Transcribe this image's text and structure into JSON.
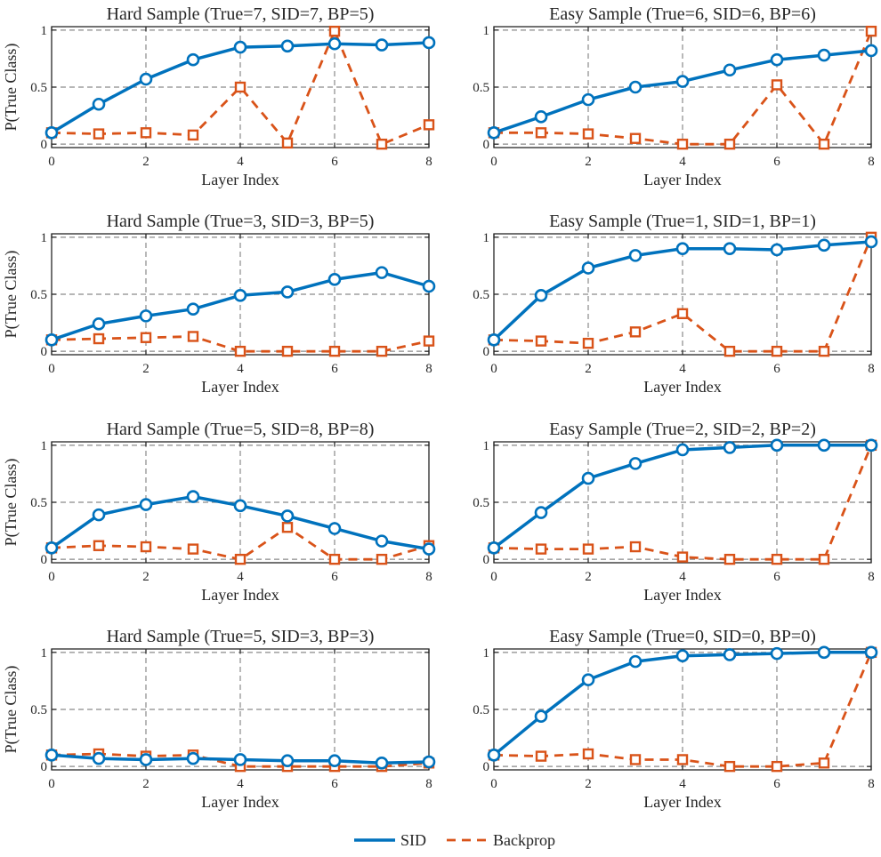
{
  "figure": {
    "sid_color": "#0072BD",
    "bp_color": "#D95319",
    "legend": [
      {
        "name": "SID",
        "style": "solid",
        "marker": "circle"
      },
      {
        "name": "Backprop",
        "style": "dashed",
        "marker": "square"
      }
    ]
  },
  "chart_data": [
    {
      "type": "line",
      "title": "Hard Sample (True=7, SID=7, BP=5)",
      "xlabel": "Layer Index",
      "ylabel": "P(True Class)",
      "x": [
        0,
        1,
        2,
        3,
        4,
        5,
        6,
        7,
        8
      ],
      "xticks": [
        "0",
        "2",
        "4",
        "6",
        "8"
      ],
      "yticks": [
        "0",
        "0.5",
        "1"
      ],
      "xlim": [
        0,
        8
      ],
      "ylim": [
        -0.03,
        1.03
      ],
      "grid": true,
      "series": [
        {
          "name": "SID",
          "values": [
            0.1,
            0.35,
            0.57,
            0.74,
            0.85,
            0.86,
            0.88,
            0.87,
            0.89
          ]
        },
        {
          "name": "Backprop",
          "values": [
            0.1,
            0.09,
            0.1,
            0.08,
            0.5,
            0.01,
            0.99,
            0.0,
            0.17
          ]
        }
      ]
    },
    {
      "type": "line",
      "title": "Easy Sample (True=6, SID=6, BP=6)",
      "xlabel": "Layer Index",
      "ylabel": "",
      "x": [
        0,
        1,
        2,
        3,
        4,
        5,
        6,
        7,
        8
      ],
      "xticks": [
        "0",
        "2",
        "4",
        "6",
        "8"
      ],
      "yticks": [
        "0",
        "0.5",
        "1"
      ],
      "xlim": [
        0,
        8
      ],
      "ylim": [
        -0.03,
        1.03
      ],
      "grid": true,
      "series": [
        {
          "name": "SID",
          "values": [
            0.1,
            0.24,
            0.39,
            0.5,
            0.55,
            0.65,
            0.74,
            0.78,
            0.82
          ]
        },
        {
          "name": "Backprop",
          "values": [
            0.1,
            0.1,
            0.09,
            0.05,
            0.0,
            0.0,
            0.52,
            0.0,
            0.99
          ]
        }
      ]
    },
    {
      "type": "line",
      "title": "Hard Sample (True=3, SID=3, BP=5)",
      "xlabel": "Layer Index",
      "ylabel": "P(True Class)",
      "x": [
        0,
        1,
        2,
        3,
        4,
        5,
        6,
        7,
        8
      ],
      "xticks": [
        "0",
        "2",
        "4",
        "6",
        "8"
      ],
      "yticks": [
        "0",
        "0.5",
        "1"
      ],
      "xlim": [
        0,
        8
      ],
      "ylim": [
        -0.03,
        1.03
      ],
      "grid": true,
      "series": [
        {
          "name": "SID",
          "values": [
            0.1,
            0.24,
            0.31,
            0.37,
            0.49,
            0.52,
            0.63,
            0.69,
            0.57
          ]
        },
        {
          "name": "Backprop",
          "values": [
            0.1,
            0.11,
            0.12,
            0.13,
            0.0,
            0.0,
            0.0,
            0.0,
            0.09
          ]
        }
      ]
    },
    {
      "type": "line",
      "title": "Easy Sample (True=1, SID=1, BP=1)",
      "xlabel": "Layer Index",
      "ylabel": "",
      "x": [
        0,
        1,
        2,
        3,
        4,
        5,
        6,
        7,
        8
      ],
      "xticks": [
        "0",
        "2",
        "4",
        "6",
        "8"
      ],
      "yticks": [
        "0",
        "0.5",
        "1"
      ],
      "xlim": [
        0,
        8
      ],
      "ylim": [
        -0.03,
        1.03
      ],
      "grid": true,
      "series": [
        {
          "name": "SID",
          "values": [
            0.1,
            0.49,
            0.73,
            0.84,
            0.9,
            0.9,
            0.89,
            0.93,
            0.96
          ]
        },
        {
          "name": "Backprop",
          "values": [
            0.1,
            0.09,
            0.07,
            0.17,
            0.33,
            0.0,
            0.0,
            0.0,
            1.0
          ]
        }
      ]
    },
    {
      "type": "line",
      "title": "Hard Sample (True=5, SID=8, BP=8)",
      "xlabel": "Layer Index",
      "ylabel": "P(True Class)",
      "x": [
        0,
        1,
        2,
        3,
        4,
        5,
        6,
        7,
        8
      ],
      "xticks": [
        "0",
        "2",
        "4",
        "6",
        "8"
      ],
      "yticks": [
        "0",
        "0.5",
        "1"
      ],
      "xlim": [
        0,
        8
      ],
      "ylim": [
        -0.03,
        1.03
      ],
      "grid": true,
      "series": [
        {
          "name": "SID",
          "values": [
            0.1,
            0.39,
            0.48,
            0.55,
            0.47,
            0.38,
            0.27,
            0.16,
            0.09
          ]
        },
        {
          "name": "Backprop",
          "values": [
            0.1,
            0.12,
            0.11,
            0.09,
            0.0,
            0.28,
            0.0,
            0.0,
            0.12
          ]
        }
      ]
    },
    {
      "type": "line",
      "title": "Easy Sample (True=2, SID=2, BP=2)",
      "xlabel": "Layer Index",
      "ylabel": "",
      "x": [
        0,
        1,
        2,
        3,
        4,
        5,
        6,
        7,
        8
      ],
      "xticks": [
        "0",
        "2",
        "4",
        "6",
        "8"
      ],
      "yticks": [
        "0",
        "0.5",
        "1"
      ],
      "xlim": [
        0,
        8
      ],
      "ylim": [
        -0.03,
        1.03
      ],
      "grid": true,
      "series": [
        {
          "name": "SID",
          "values": [
            0.1,
            0.41,
            0.71,
            0.84,
            0.96,
            0.98,
            1.0,
            1.0,
            1.0
          ]
        },
        {
          "name": "Backprop",
          "values": [
            0.1,
            0.09,
            0.09,
            0.11,
            0.02,
            0.0,
            0.0,
            0.0,
            1.0
          ]
        }
      ]
    },
    {
      "type": "line",
      "title": "Hard Sample (True=5, SID=3, BP=3)",
      "xlabel": "Layer Index",
      "ylabel": "P(True Class)",
      "x": [
        0,
        1,
        2,
        3,
        4,
        5,
        6,
        7,
        8
      ],
      "xticks": [
        "0",
        "2",
        "4",
        "6",
        "8"
      ],
      "yticks": [
        "0",
        "0.5",
        "1"
      ],
      "xlim": [
        0,
        8
      ],
      "ylim": [
        -0.03,
        1.03
      ],
      "grid": true,
      "series": [
        {
          "name": "SID",
          "values": [
            0.1,
            0.07,
            0.06,
            0.07,
            0.06,
            0.05,
            0.05,
            0.03,
            0.04
          ]
        },
        {
          "name": "Backprop",
          "values": [
            0.1,
            0.11,
            0.09,
            0.1,
            0.0,
            0.0,
            0.0,
            0.0,
            0.03
          ]
        }
      ]
    },
    {
      "type": "line",
      "title": "Easy Sample (True=0, SID=0, BP=0)",
      "xlabel": "Layer Index",
      "ylabel": "",
      "x": [
        0,
        1,
        2,
        3,
        4,
        5,
        6,
        7,
        8
      ],
      "xticks": [
        "0",
        "2",
        "4",
        "6",
        "8"
      ],
      "yticks": [
        "0",
        "0.5",
        "1"
      ],
      "xlim": [
        0,
        8
      ],
      "ylim": [
        -0.03,
        1.03
      ],
      "grid": true,
      "series": [
        {
          "name": "SID",
          "values": [
            0.1,
            0.44,
            0.76,
            0.92,
            0.97,
            0.98,
            0.99,
            1.0,
            1.0
          ]
        },
        {
          "name": "Backprop",
          "values": [
            0.1,
            0.09,
            0.11,
            0.06,
            0.06,
            0.0,
            0.0,
            0.03,
            1.0
          ]
        }
      ]
    }
  ]
}
